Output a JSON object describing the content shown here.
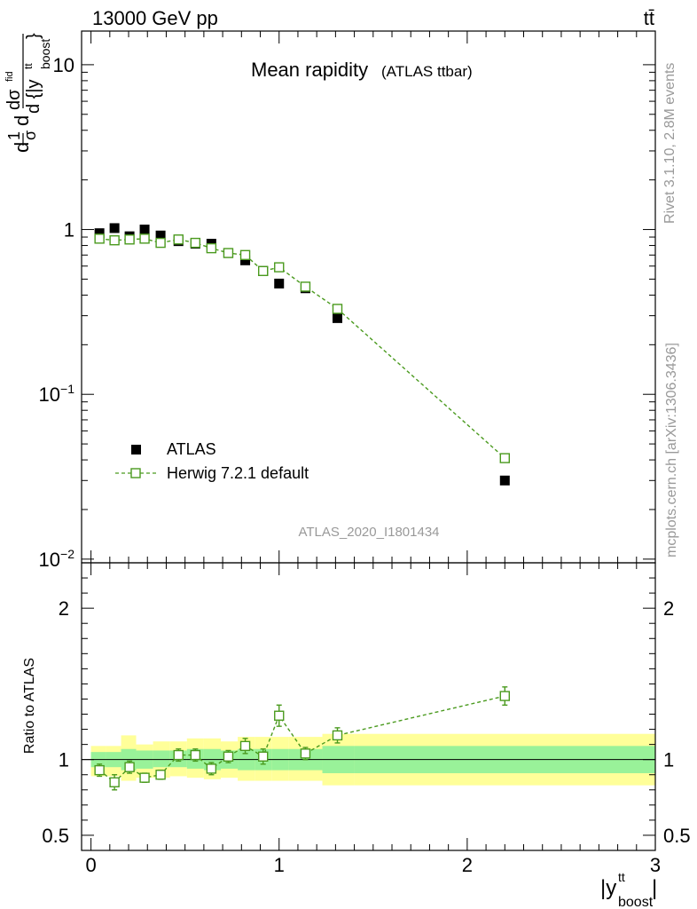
{
  "header": {
    "energy_label": "13000 GeV pp",
    "process_label": "tt̄"
  },
  "side_labels": {
    "rivet": "Rivet 3.1.10,  2.8M events",
    "mcplots": "mcplots.cern.ch [arXiv:1306.3436]"
  },
  "chart_data": {
    "type": "scatter",
    "title": "Mean rapidity",
    "subtitle": "(ATLAS ttbar)",
    "analysis_id": "ATLAS_2020_I1801434",
    "xlabel": "|y",
    "xlabel_sup": "tt",
    "xlabel_sub": "boost",
    "ylabel_ratio": "Ratio to ATLAS",
    "xlim": [
      -0.05,
      3.0
    ],
    "main_yscale": "log",
    "main_ylim": [
      0.0095,
      16
    ],
    "ratio_ylim": [
      0.4,
      2.3
    ],
    "x_ticks": [
      "0",
      "1",
      "2",
      "3"
    ],
    "main_y_ticks": [
      {
        "value": 10,
        "base": "10",
        "exp": ""
      },
      {
        "value": 1,
        "base": "1",
        "exp": ""
      },
      {
        "value": 0.1,
        "base": "10",
        "exp": "−1"
      },
      {
        "value": 0.01,
        "base": "10",
        "exp": "−2"
      }
    ],
    "ratio_y_ticks": [
      "0.5",
      "1",
      "2"
    ],
    "legend_placement": "lower-left",
    "colors": {
      "data": "#000000",
      "mc": "#4a9a1e",
      "band_inner": "#99f299",
      "band_outer": "#ffff99",
      "watermark": "#999999"
    },
    "series": [
      {
        "name": "ATLAS",
        "marker": "filled-square",
        "x": [
          0.045,
          0.125,
          0.205,
          0.285,
          0.37,
          0.465,
          0.555,
          0.64,
          0.73,
          0.82,
          0.915,
          1.0,
          1.14,
          1.31,
          2.2
        ],
        "y": [
          0.95,
          1.02,
          0.91,
          1.0,
          0.92,
          0.85,
          0.82,
          0.82,
          0.72,
          0.65,
          0.56,
          0.47,
          0.44,
          0.29,
          0.03
        ]
      },
      {
        "name": "Herwig 7.2.1 default",
        "marker": "open-square-dashed",
        "x": [
          0.045,
          0.125,
          0.205,
          0.285,
          0.37,
          0.465,
          0.555,
          0.64,
          0.73,
          0.82,
          0.915,
          1.0,
          1.14,
          1.31,
          2.2
        ],
        "y": [
          0.88,
          0.86,
          0.87,
          0.88,
          0.83,
          0.87,
          0.83,
          0.77,
          0.72,
          0.7,
          0.56,
          0.59,
          0.45,
          0.33,
          0.041
        ]
      }
    ],
    "ratio": {
      "x": [
        0.045,
        0.125,
        0.205,
        0.285,
        0.37,
        0.465,
        0.555,
        0.64,
        0.73,
        0.82,
        0.915,
        1.0,
        1.14,
        1.31,
        2.2
      ],
      "y": [
        0.93,
        0.85,
        0.95,
        0.88,
        0.9,
        1.03,
        1.03,
        0.94,
        1.02,
        1.09,
        1.02,
        1.29,
        1.04,
        1.16,
        1.42
      ],
      "err": [
        0.04,
        0.05,
        0.04,
        0.03,
        0.03,
        0.04,
        0.04,
        0.04,
        0.04,
        0.05,
        0.05,
        0.07,
        0.04,
        0.05,
        0.06
      ]
    },
    "bands": {
      "edges": [
        0.0,
        0.08,
        0.16,
        0.24,
        0.33,
        0.42,
        0.51,
        0.6,
        0.69,
        0.78,
        0.87,
        0.96,
        1.05,
        1.23,
        1.4,
        3.0
      ],
      "inner_lo": [
        0.95,
        0.95,
        0.93,
        0.94,
        0.95,
        0.95,
        0.94,
        0.93,
        0.94,
        0.93,
        0.93,
        0.93,
        0.93,
        0.91,
        0.91
      ],
      "inner_hi": [
        1.05,
        1.05,
        1.07,
        1.06,
        1.06,
        1.06,
        1.07,
        1.07,
        1.06,
        1.07,
        1.07,
        1.07,
        1.07,
        1.09,
        1.09
      ],
      "outer_lo": [
        0.89,
        0.89,
        0.86,
        0.88,
        0.88,
        0.89,
        0.88,
        0.87,
        0.88,
        0.86,
        0.86,
        0.86,
        0.86,
        0.83,
        0.83
      ],
      "outer_hi": [
        1.09,
        1.09,
        1.16,
        1.1,
        1.12,
        1.12,
        1.14,
        1.14,
        1.12,
        1.15,
        1.15,
        1.15,
        1.15,
        1.17,
        1.17
      ]
    }
  }
}
